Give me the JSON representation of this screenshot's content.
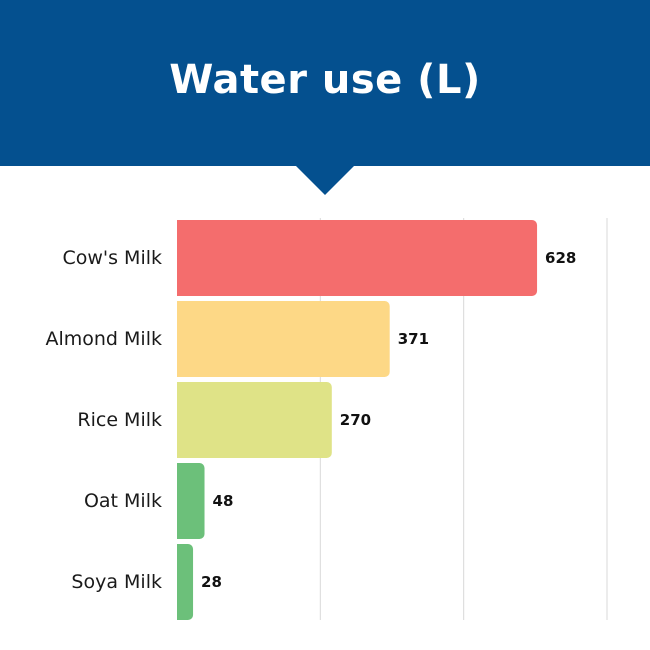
{
  "header": {
    "title": "Water use (L)",
    "background": "#04508f"
  },
  "chart_data": {
    "type": "bar",
    "orientation": "horizontal",
    "title": "Water use (L)",
    "categories": [
      "Cow's Milk",
      "Almond Milk",
      "Rice Milk",
      "Oat Milk",
      "Soya Milk"
    ],
    "values": [
      628,
      371,
      270,
      48,
      28
    ],
    "value_labels": [
      "628",
      "371",
      "270",
      "48",
      "28"
    ],
    "colors": [
      "#f46d6d",
      "#fdd886",
      "#dfe387",
      "#6cc07a",
      "#6cc07a"
    ],
    "xlim": [
      0,
      750
    ],
    "grid": true,
    "gridline_values": [
      250,
      500,
      750
    ],
    "legend": "none",
    "xlabel": "",
    "ylabel": ""
  }
}
